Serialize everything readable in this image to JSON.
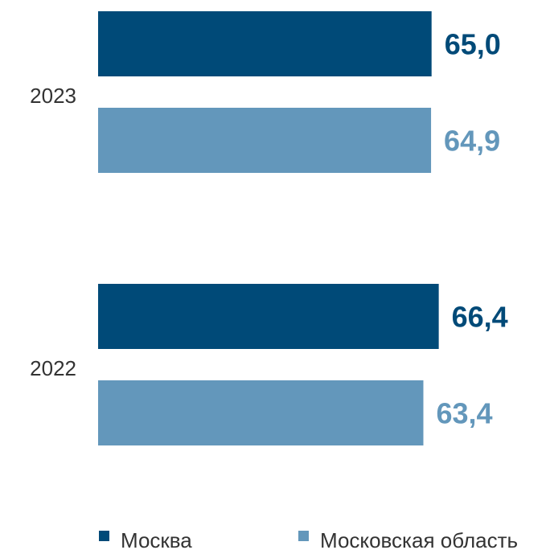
{
  "chart_data": {
    "type": "bar",
    "orientation": "horizontal",
    "categories": [
      "2023",
      "2022"
    ],
    "series": [
      {
        "name": "Москва",
        "color": "#004a78",
        "values": [
          65.0,
          66.4
        ],
        "labels": [
          "65,0",
          "66,4"
        ]
      },
      {
        "name": "Московская область",
        "color": "#6397bb",
        "values": [
          64.9,
          63.4
        ],
        "labels": [
          "64,9",
          "63,4"
        ]
      }
    ],
    "legend_position": "bottom",
    "grid": false,
    "axis_visible": false
  }
}
